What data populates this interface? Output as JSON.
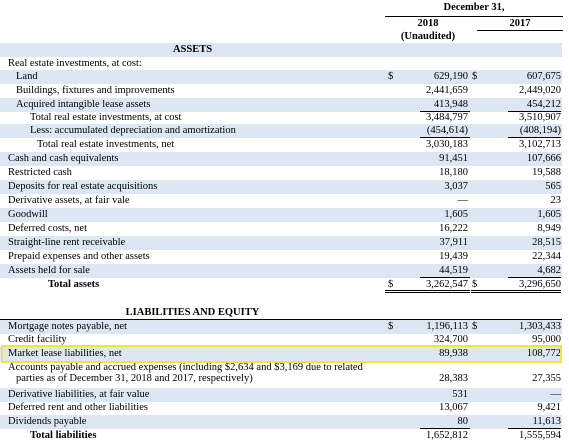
{
  "header": {
    "period": "December 31,",
    "col_2018": "2018",
    "col_2017": "2017",
    "unaudited": "(Unaudited)"
  },
  "assets": {
    "title": "ASSETS",
    "subheading": "Real estate investments, at cost:",
    "rows": [
      {
        "label": "Land",
        "dollar1": "$",
        "v2018": "629,190",
        "dollar2": "$",
        "v2017": "607,675",
        "indent": 1
      },
      {
        "label": "Buildings, fixtures and improvements",
        "v2018": "2,441,659",
        "v2017": "2,449,020",
        "indent": 1
      },
      {
        "label": "Acquired intangible lease assets",
        "v2018": "413,948",
        "v2017": "454,212",
        "indent": 1
      },
      {
        "label": "Total real estate investments, at cost",
        "v2018": "3,484,797",
        "v2017": "3,510,907",
        "indent": 2
      },
      {
        "label": "Less: accumulated depreciation and amortization",
        "v2018": "(454,614)",
        "v2017": "(408,194)",
        "indent": 2
      },
      {
        "label": "Total real estate investments, net",
        "v2018": "3,030,183",
        "v2017": "3,102,713",
        "indent": 3
      },
      {
        "label": "Cash and cash equivalents",
        "v2018": "91,451",
        "v2017": "107,666",
        "indent": 0
      },
      {
        "label": "Restricted cash",
        "v2018": "18,180",
        "v2017": "19,588",
        "indent": 0
      },
      {
        "label": "Deposits for real estate acquisitions",
        "v2018": "3,037",
        "v2017": "565",
        "indent": 0
      },
      {
        "label": "Derivative assets, at fair vale",
        "v2018": "—",
        "v2017": "23",
        "indent": 0
      },
      {
        "label": "Goodwill",
        "v2018": "1,605",
        "v2017": "1,605",
        "indent": 0
      },
      {
        "label": "Deferred costs, net",
        "v2018": "16,222",
        "v2017": "8,949",
        "indent": 0
      },
      {
        "label": "Straight-line rent receivable",
        "v2018": "37,911",
        "v2017": "28,515",
        "indent": 0
      },
      {
        "label": "Prepaid expenses and other assets",
        "v2018": "19,439",
        "v2017": "22,344",
        "indent": 0
      },
      {
        "label": "Assets held for sale",
        "v2018": "44,519",
        "v2017": "4,682",
        "indent": 0
      },
      {
        "label": "Total assets",
        "dollar1": "$",
        "v2018": "3,262,547",
        "dollar2": "$",
        "v2017": "3,296,650",
        "indent": 4,
        "bold": true
      }
    ]
  },
  "liabilities": {
    "title": "LIABILITIES AND EQUITY",
    "rows": [
      {
        "label": "Mortgage notes payable, net",
        "dollar1": "$",
        "v2018": "1,196,113",
        "dollar2": "$",
        "v2017": "1,303,433"
      },
      {
        "label": "Credit facility",
        "v2018": "324,700",
        "v2017": "95,000"
      },
      {
        "label": "Market lease liabilities, net",
        "v2018": "89,938",
        "v2017": "108,772"
      },
      {
        "label": "Accounts payable and accrued expenses (including $2,634 and $3,169 due to related",
        "label2": "parties as of December 31, 2018 and 2017, respectively)",
        "v2018": "28,383",
        "v2017": "27,355"
      },
      {
        "label": "Derivative liabilities, at fair value",
        "v2018": "531",
        "v2017": "—"
      },
      {
        "label": "Deferred rent and other liabilities",
        "v2018": "13,067",
        "v2017": "9,421"
      },
      {
        "label": "Dividends payable",
        "v2018": "80",
        "v2017": "11,613"
      },
      {
        "label": "Total liabilities",
        "v2018": "1,652,812",
        "v2017": "1,555,594",
        "bold": true
      }
    ]
  }
}
